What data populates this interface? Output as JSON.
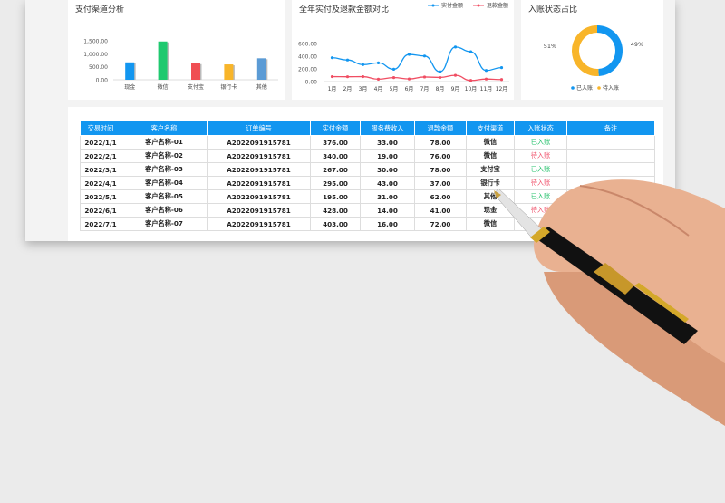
{
  "colors": {
    "accent": "#1296f0",
    "green": "#22c06a",
    "red": "#f0506a",
    "orange": "#f8b52a"
  },
  "bar_chart": {
    "title": "支付渠道分析",
    "type": "bar",
    "categories": [
      "现金",
      "微信",
      "支付宝",
      "银行卡",
      "其他"
    ],
    "values": [
      600,
      1320,
      570,
      530,
      740
    ],
    "bar_colors": [
      "#1296f0",
      "#1fc96f",
      "#f04e53",
      "#f8b52a",
      "#5b9bd5"
    ],
    "yticks": [
      "0.00",
      "500.00",
      "1,000.00",
      "1,500.00"
    ],
    "ylim": [
      0,
      1500
    ]
  },
  "line_chart": {
    "title": "全年实付及退款金额对比",
    "type": "line",
    "categories": [
      "1月",
      "2月",
      "3月",
      "4月",
      "5月",
      "6月",
      "7月",
      "8月",
      "9月",
      "10月",
      "11月",
      "12月"
    ],
    "series": [
      {
        "name": "实付金额",
        "color": "#1296f0",
        "values": [
          376,
          340,
          267,
          295,
          195,
          428,
          403,
          155,
          545,
          470,
          175,
          220
        ]
      },
      {
        "name": "退款金额",
        "color": "#f04e63",
        "values": [
          78,
          76,
          78,
          37,
          62,
          41,
          72,
          65,
          98,
          18,
          40,
          32
        ]
      }
    ],
    "yticks": [
      "0.00",
      "200.00",
      "400.00",
      "600.00"
    ],
    "ylim": [
      0,
      600
    ]
  },
  "donut_chart": {
    "title": "入账状态占比",
    "type": "pie",
    "slices": [
      {
        "name": "已入账",
        "value": 49,
        "label": "49%",
        "color": "#1296f0"
      },
      {
        "name": "待入账",
        "value": 51,
        "label": "51%",
        "color": "#f8b52a"
      }
    ]
  },
  "table": {
    "headers": [
      "交易时间",
      "客户名称",
      "订单编号",
      "实付金额",
      "服务费收入",
      "退款金额",
      "支付渠道",
      "入账状态",
      "备注"
    ],
    "rows": [
      [
        "2022/1/1",
        "客户名称-01",
        "A2022091915781",
        "376.00",
        "33.00",
        "78.00",
        "微信",
        "已入账",
        ""
      ],
      [
        "2022/2/1",
        "客户名称-02",
        "A2022091915781",
        "340.00",
        "19.00",
        "76.00",
        "微信",
        "待入账",
        ""
      ],
      [
        "2022/3/1",
        "客户名称-03",
        "A2022091915781",
        "267.00",
        "30.00",
        "78.00",
        "支付宝",
        "已入账",
        ""
      ],
      [
        "2022/4/1",
        "客户名称-04",
        "A2022091915781",
        "295.00",
        "43.00",
        "37.00",
        "银行卡",
        "待入账",
        ""
      ],
      [
        "2022/5/1",
        "客户名称-05",
        "A2022091915781",
        "195.00",
        "31.00",
        "62.00",
        "其他",
        "已入账",
        ""
      ],
      [
        "2022/6/1",
        "客户名称-06",
        "A2022091915781",
        "428.00",
        "14.00",
        "41.00",
        "现金",
        "待入账",
        ""
      ],
      [
        "2022/7/1",
        "客户名称-07",
        "A2022091915781",
        "403.00",
        "16.00",
        "72.00",
        "微信",
        "",
        ""
      ]
    ]
  }
}
